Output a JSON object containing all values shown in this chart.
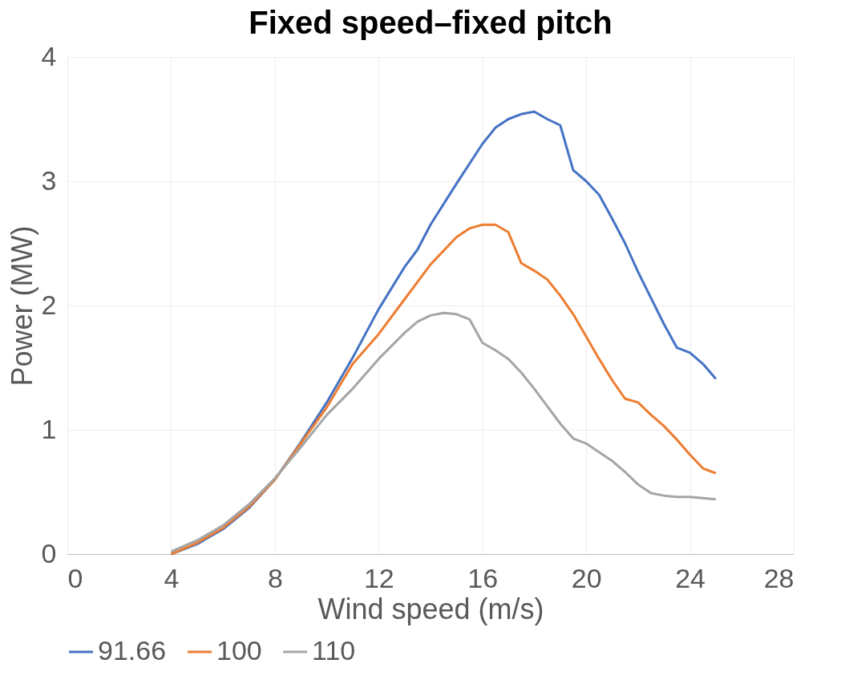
{
  "chart_data": {
    "type": "line",
    "title": "Fixed speed–fixed pitch",
    "xlabel": "Wind speed (m/s)",
    "ylabel": "Power (MW)",
    "xlim": [
      0,
      28
    ],
    "xticks": [
      0,
      4,
      8,
      12,
      16,
      20,
      24,
      28
    ],
    "ylim": [
      0,
      4
    ],
    "yticks": [
      0,
      1,
      2,
      3,
      4
    ],
    "grid": true,
    "legend": "bottom",
    "line_style": "solid",
    "marker": "none",
    "series": [
      {
        "name": "91.66",
        "color": "#4472c4",
        "x": [
          4,
          5,
          6,
          7,
          8,
          9,
          10,
          11,
          12,
          13,
          13.5,
          14,
          15,
          16,
          16.5,
          17,
          17.5,
          18,
          18.5,
          19,
          19.5,
          20,
          20.5,
          21,
          21.5,
          22,
          23,
          23.5,
          24,
          24.5,
          25
        ],
        "values": [
          0.0,
          0.08,
          0.2,
          0.37,
          0.6,
          0.9,
          1.22,
          1.58,
          1.97,
          2.31,
          2.45,
          2.65,
          2.98,
          3.3,
          3.43,
          3.5,
          3.54,
          3.56,
          3.5,
          3.45,
          3.09,
          3.0,
          2.89,
          2.7,
          2.5,
          2.27,
          1.85,
          1.66,
          1.62,
          1.53,
          1.41
        ]
      },
      {
        "name": "100",
        "color": "#ed7d31",
        "x": [
          4,
          5,
          6,
          7,
          8,
          9,
          10,
          11,
          12,
          13,
          14,
          15,
          15.5,
          16,
          16.5,
          17,
          17.5,
          18,
          18.5,
          19,
          19.5,
          20,
          20.5,
          21,
          21.5,
          22,
          22.5,
          23,
          23.5,
          24,
          24.5,
          25
        ],
        "values": [
          0.0,
          0.09,
          0.21,
          0.38,
          0.6,
          0.89,
          1.18,
          1.53,
          1.77,
          2.05,
          2.33,
          2.55,
          2.62,
          2.65,
          2.65,
          2.59,
          2.34,
          2.28,
          2.21,
          2.08,
          1.93,
          1.75,
          1.57,
          1.4,
          1.25,
          1.22,
          1.12,
          1.03,
          0.92,
          0.8,
          0.69,
          0.65
        ]
      },
      {
        "name": "110",
        "color": "#a5a5a5",
        "x": [
          4,
          5,
          6,
          7,
          8,
          9,
          10,
          11,
          12,
          13,
          13.5,
          14,
          14.5,
          15,
          15.5,
          16,
          16.5,
          17,
          17.5,
          18,
          18.5,
          19,
          19.5,
          20,
          20.5,
          21,
          21.5,
          22,
          22.5,
          23,
          23.5,
          24,
          24.5,
          25
        ],
        "values": [
          0.02,
          0.11,
          0.23,
          0.4,
          0.61,
          0.86,
          1.12,
          1.33,
          1.57,
          1.78,
          1.87,
          1.92,
          1.94,
          1.93,
          1.89,
          1.7,
          1.64,
          1.57,
          1.46,
          1.33,
          1.19,
          1.05,
          0.93,
          0.89,
          0.82,
          0.75,
          0.66,
          0.56,
          0.49,
          0.47,
          0.46,
          0.46,
          0.45,
          0.44
        ]
      }
    ]
  }
}
